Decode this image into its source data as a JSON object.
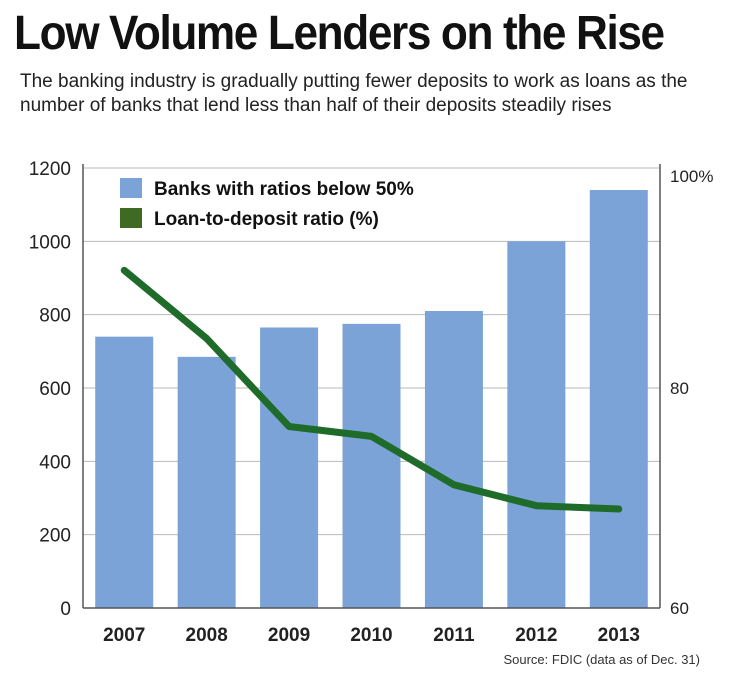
{
  "title": "Low Volume Lenders on the Rise",
  "subtitle": "The banking industry is gradually putting fewer deposits to work as loans as the number of banks that lend less than half of their deposits steadily rises",
  "source": "Source: FDIC (data as of Dec. 31)",
  "colors": {
    "bars": "#7ba3d8",
    "line": "#1f6b2a",
    "legend_line": "#3f6a23"
  },
  "chart_data": {
    "type": "bar",
    "categories": [
      "2007",
      "2008",
      "2009",
      "2010",
      "2011",
      "2012",
      "2013"
    ],
    "series": [
      {
        "name": "Banks with ratios below 50%",
        "type": "bar",
        "axis": "left",
        "values": [
          740,
          685,
          765,
          775,
          810,
          1000,
          1140
        ]
      },
      {
        "name": "Loan-to-deposit ratio (%)",
        "type": "line",
        "axis": "right",
        "values": [
          90.7,
          84.5,
          76.5,
          75.6,
          71.2,
          69.3,
          69.0
        ]
      }
    ],
    "y_left": {
      "ylim": [
        0,
        1200
      ],
      "ticks": [
        "0",
        "200",
        "400",
        "600",
        "800",
        "1000",
        "1200"
      ]
    },
    "y_right": {
      "ylim": [
        60,
        100
      ],
      "ticks": [
        "60",
        "80",
        "100%"
      ]
    },
    "legend": "top-left",
    "grid": true
  }
}
